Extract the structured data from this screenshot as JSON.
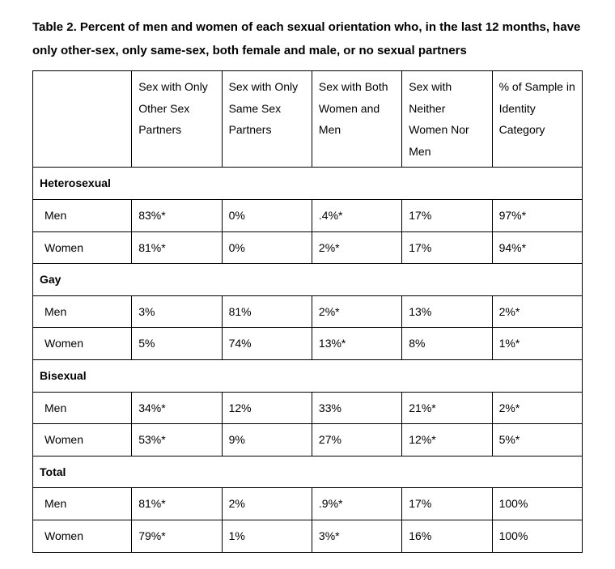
{
  "title": "Table 2. Percent of men and women of each sexual orientation who, in the last 12 months, have only other-sex, only same-sex, both female and male, or no sexual partners",
  "columns": [
    "Sex with Only Other Sex Partners",
    "Sex with Only Same Sex Partners",
    "Sex with Both Women and Men",
    "Sex with Neither Women Nor Men",
    "% of Sample in Identity Category"
  ],
  "sections": [
    {
      "label": "Heterosexual",
      "rows": [
        {
          "label": "Men",
          "cells": [
            "83%*",
            "0%",
            ".4%*",
            "17%",
            "97%*"
          ]
        },
        {
          "label": "Women",
          "cells": [
            "81%*",
            "0%",
            "2%*",
            "17%",
            "94%*"
          ]
        }
      ]
    },
    {
      "label": "Gay",
      "rows": [
        {
          "label": "Men",
          "cells": [
            "3%",
            "81%",
            "2%*",
            "13%",
            "2%*"
          ]
        },
        {
          "label": "Women",
          "cells": [
            "5%",
            "74%",
            "13%*",
            "8%",
            "1%*"
          ]
        }
      ]
    },
    {
      "label": "Bisexual",
      "rows": [
        {
          "label": "Men",
          "cells": [
            "34%*",
            "12%",
            "33%",
            "21%*",
            "2%*"
          ]
        },
        {
          "label": "Women",
          "cells": [
            "53%*",
            "9%",
            "27%",
            "12%*",
            "5%*"
          ]
        }
      ]
    },
    {
      "label": "Total",
      "rows": [
        {
          "label": "Men",
          "cells": [
            "81%*",
            "2%",
            ".9%*",
            "17%",
            "100%"
          ]
        },
        {
          "label": "Women",
          "cells": [
            "79%*",
            "1%",
            "3%*",
            "16%",
            "100%"
          ]
        }
      ]
    }
  ]
}
